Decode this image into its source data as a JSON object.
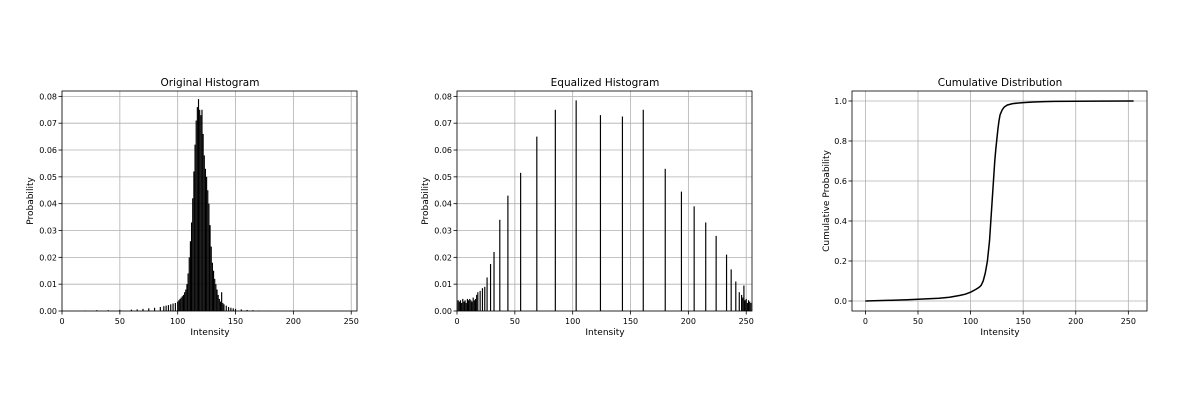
{
  "figure": {
    "panels": [
      {
        "id": "orig",
        "title": "Original Histogram",
        "xlabel": "Intensity",
        "ylabel": "Probability",
        "xticks": [
          0,
          50,
          100,
          150,
          200,
          250
        ],
        "yticks": [
          0.0,
          0.01,
          0.02,
          0.03,
          0.04,
          0.05,
          0.06,
          0.07,
          0.08
        ],
        "ytick_labels": [
          "0.00",
          "0.01",
          "0.02",
          "0.03",
          "0.04",
          "0.05",
          "0.06",
          "0.07",
          "0.08"
        ],
        "xlim": [
          0,
          255
        ],
        "ylim": [
          0,
          0.082
        ]
      },
      {
        "id": "eq",
        "title": "Equalized Histogram",
        "xlabel": "Intensity",
        "ylabel": "Probability",
        "xticks": [
          0,
          50,
          100,
          150,
          200,
          250
        ],
        "yticks": [
          0.0,
          0.01,
          0.02,
          0.03,
          0.04,
          0.05,
          0.06,
          0.07,
          0.08
        ],
        "ytick_labels": [
          "0.00",
          "0.01",
          "0.02",
          "0.03",
          "0.04",
          "0.05",
          "0.06",
          "0.07",
          "0.08"
        ],
        "xlim": [
          0,
          255
        ],
        "ylim": [
          0,
          0.082
        ]
      },
      {
        "id": "cdf",
        "title": "Cumulative Distribution",
        "xlabel": "Intensity",
        "ylabel": "Cumulative Probability",
        "xticks": [
          0,
          50,
          100,
          150,
          200,
          250
        ],
        "yticks": [
          0.0,
          0.2,
          0.4,
          0.6,
          0.8,
          1.0
        ],
        "ytick_labels": [
          "0.0",
          "0.2",
          "0.4",
          "0.6",
          "0.8",
          "1.0"
        ],
        "xlim": [
          -12.75,
          267.75
        ],
        "ylim": [
          -0.05,
          1.05
        ]
      }
    ]
  },
  "chart_data": [
    {
      "type": "bar",
      "title": "Original Histogram",
      "xlabel": "Intensity",
      "ylabel": "Probability",
      "xlim": [
        0,
        255
      ],
      "ylim": [
        0,
        0.082
      ],
      "grid": true,
      "color": "#000000",
      "x": [
        20,
        30,
        40,
        50,
        60,
        65,
        70,
        75,
        80,
        85,
        88,
        90,
        92,
        94,
        96,
        98,
        100,
        101,
        102,
        103,
        104,
        105,
        106,
        107,
        108,
        109,
        110,
        111,
        112,
        113,
        114,
        115,
        116,
        117,
        118,
        119,
        120,
        121,
        122,
        123,
        124,
        125,
        126,
        127,
        128,
        129,
        130,
        131,
        132,
        133,
        134,
        135,
        136,
        137,
        138,
        139,
        140,
        142,
        144,
        146,
        148,
        150,
        155,
        160,
        165,
        170,
        180
      ],
      "values": [
        0.0002,
        0.0003,
        0.0003,
        0.0004,
        0.0005,
        0.0006,
        0.0008,
        0.001,
        0.0012,
        0.0015,
        0.0018,
        0.002,
        0.0022,
        0.0025,
        0.0028,
        0.003,
        0.0035,
        0.004,
        0.0045,
        0.005,
        0.0055,
        0.006,
        0.007,
        0.008,
        0.01,
        0.014,
        0.02,
        0.026,
        0.033,
        0.042,
        0.052,
        0.062,
        0.071,
        0.076,
        0.079,
        0.075,
        0.073,
        0.075,
        0.066,
        0.058,
        0.053,
        0.05,
        0.045,
        0.04,
        0.032,
        0.024,
        0.018,
        0.015,
        0.012,
        0.01,
        0.008,
        0.006,
        0.0045,
        0.0035,
        0.007,
        0.003,
        0.0025,
        0.002,
        0.0015,
        0.0012,
        0.001,
        0.0008,
        0.0006,
        0.0004,
        0.0003,
        0.0002,
        0.0001
      ]
    },
    {
      "type": "bar",
      "title": "Equalized Histogram",
      "xlabel": "Intensity",
      "ylabel": "Probability",
      "xlim": [
        0,
        255
      ],
      "ylim": [
        0,
        0.082
      ],
      "grid": true,
      "color": "#000000",
      "x": [
        1,
        2,
        3,
        4,
        5,
        6,
        7,
        8,
        9,
        10,
        11,
        12,
        13,
        14,
        15,
        16,
        17,
        18,
        20,
        22,
        24,
        26,
        29,
        32,
        37,
        44,
        55,
        69,
        85,
        103,
        124,
        143,
        161,
        180,
        194,
        205,
        215,
        224,
        233,
        237,
        241,
        244,
        246,
        247,
        248,
        249,
        250,
        251,
        252,
        253,
        254
      ],
      "values": [
        0.004,
        0.0035,
        0.004,
        0.003,
        0.0045,
        0.0035,
        0.004,
        0.003,
        0.0045,
        0.004,
        0.0045,
        0.004,
        0.0035,
        0.005,
        0.004,
        0.0045,
        0.006,
        0.007,
        0.0075,
        0.0085,
        0.009,
        0.0125,
        0.0175,
        0.022,
        0.034,
        0.043,
        0.0515,
        0.065,
        0.075,
        0.0785,
        0.073,
        0.0725,
        0.075,
        0.053,
        0.0445,
        0.039,
        0.033,
        0.028,
        0.021,
        0.0155,
        0.011,
        0.007,
        0.006,
        0.005,
        0.0095,
        0.004,
        0.0045,
        0.003,
        0.004,
        0.0035,
        0.003
      ]
    },
    {
      "type": "line",
      "title": "Cumulative Distribution",
      "xlabel": "Intensity",
      "ylabel": "Cumulative Probability",
      "xlim": [
        -12.75,
        267.75
      ],
      "ylim": [
        -0.05,
        1.05
      ],
      "grid": true,
      "color": "#000000",
      "x": [
        0,
        20,
        40,
        60,
        70,
        80,
        90,
        95,
        100,
        105,
        108,
        110,
        112,
        114,
        116,
        118,
        119,
        120,
        121,
        122,
        123,
        124,
        125,
        126,
        127,
        128,
        130,
        132,
        135,
        140,
        150,
        160,
        170,
        180,
        200,
        220,
        255
      ],
      "y": [
        0.0,
        0.003,
        0.006,
        0.011,
        0.014,
        0.019,
        0.028,
        0.034,
        0.044,
        0.058,
        0.068,
        0.078,
        0.1,
        0.14,
        0.2,
        0.3,
        0.38,
        0.46,
        0.54,
        0.62,
        0.7,
        0.76,
        0.81,
        0.86,
        0.9,
        0.93,
        0.955,
        0.97,
        0.98,
        0.987,
        0.992,
        0.995,
        0.997,
        0.998,
        0.999,
        0.9995,
        1.0
      ]
    }
  ]
}
